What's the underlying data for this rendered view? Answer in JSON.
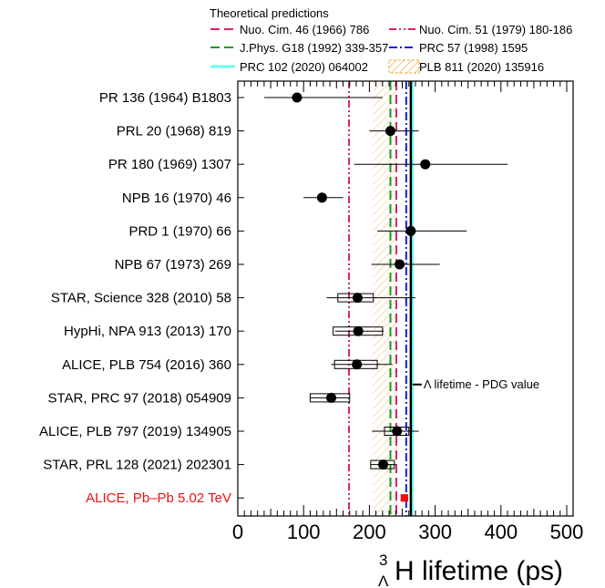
{
  "chart_data": {
    "type": "scatter",
    "legend_title": "Theoretical predictions",
    "legend": [
      {
        "label": "Nuo. Cim. 46 (1966) 786",
        "value": 241,
        "style": "dashed",
        "color": "#d6246e"
      },
      {
        "label": "Nuo. Cim. 51 (1979) 180-186",
        "value": 169,
        "style": "dashdotdot",
        "color": "#d6246e"
      },
      {
        "label": "J.Phys. G18 (1992) 339-357",
        "value": 232,
        "style": "dashed",
        "color": "#1a9a1a"
      },
      {
        "label": "PRC 57 (1998) 1595",
        "value": 256,
        "style": "dashdot",
        "color": "#1a1adc"
      },
      {
        "label": "PRC 102 (2020) 064002",
        "value": 265,
        "style": "solid",
        "color": "#66ffee"
      },
      {
        "label": "PLB 811 (2020) 135916",
        "band": [
          205,
          242
        ],
        "style": "band",
        "color": "#f5a030"
      }
    ],
    "pdg": {
      "value": 263,
      "label": "Λ lifetime - PDG value"
    },
    "xlabel": {
      "base": "H lifetime (ps)",
      "sup": "3",
      "sub": "Λ"
    },
    "xlim": [
      0,
      505
    ],
    "xticks": [
      "0",
      "100",
      "200",
      "300",
      "400",
      "500"
    ],
    "points": [
      {
        "label": "PR 136 (1964) B1803",
        "value": 90,
        "err_low": 40,
        "err_high": 220
      },
      {
        "label": "PRL 20 (1968) 819",
        "value": 232,
        "err_low": 200,
        "err_high": 275
      },
      {
        "label": "PR 180 (1969) 1307",
        "value": 285,
        "err_low": 177,
        "err_high": 410
      },
      {
        "label": "NPB 16 (1970) 46",
        "value": 128,
        "err_low": 100,
        "err_high": 160
      },
      {
        "label": "PRD 1 (1970) 66",
        "value": 263,
        "err_low": 212,
        "err_high": 348
      },
      {
        "label": "NPB 67 (1973) 269",
        "value": 246,
        "err_low": 203,
        "err_high": 307
      },
      {
        "label": "STAR, Science 328 (2010) 58",
        "value": 182,
        "err_low": 135,
        "err_high": 270,
        "syst": [
          152,
          206
        ]
      },
      {
        "label": "HypHi, NPA 913 (2013) 170",
        "value": 183,
        "err_low": 148,
        "err_high": 222,
        "syst": [
          145,
          220
        ]
      },
      {
        "label": "ALICE, PLB 754 (2016) 360",
        "value": 181,
        "err_low": 142,
        "err_high": 235,
        "syst": [
          147,
          212
        ]
      },
      {
        "label": "STAR, PRC 97 (2018) 054909",
        "value": 142,
        "err_low": 110,
        "err_high": 170,
        "syst": [
          110,
          170
        ]
      },
      {
        "label": "ALICE, PLB 797 (2019) 134905",
        "value": 242,
        "err_low": 204,
        "err_high": 275,
        "syst": [
          223,
          260
        ]
      },
      {
        "label": "STAR, PRL 128 (2021) 202301",
        "value": 221,
        "err_low": 202,
        "err_high": 240,
        "syst": [
          202,
          238
        ]
      },
      {
        "label": "ALICE, Pb–Pb 5.02 TeV",
        "value": 253,
        "err_low": 248,
        "err_high": 259,
        "syst": [
          248,
          259
        ],
        "highlight": true,
        "color": "#ee1111"
      }
    ]
  }
}
